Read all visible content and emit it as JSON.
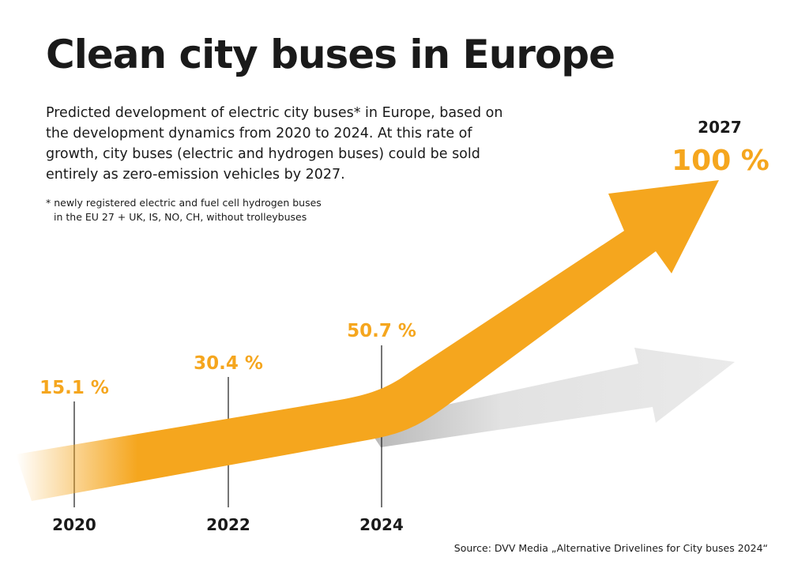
{
  "title": "Clean city buses in Europe",
  "subtitle": "Predicted development of electric city buses* in Europe, based on the development dynamics from 2020 to 2024. At this rate of growth, city buses (electric and hydrogen buses) could be sold entirely as zero-emission vehicles by 2027.",
  "footnote": {
    "line1": "* newly registered electric and fuel cell hydrogen buses",
    "line2": "in the EU 27 + UK, IS, NO, CH, without trolleybuses"
  },
  "source": "Source: DVV Media „Alternative Drivelines for City buses 2024“",
  "colors": {
    "accent": "#f5a61e",
    "ghost_arrow": "#e4e4e4",
    "text": "#1a1a1a"
  },
  "chart_data": {
    "type": "line",
    "title": "Clean city buses in Europe",
    "x": [
      "2020",
      "2022",
      "2024",
      "2027"
    ],
    "values": [
      15.1,
      30.4,
      50.7,
      100
    ],
    "labels": [
      "15.1 %",
      "30.4 %",
      "50.7 %",
      "100 %"
    ],
    "xlabel": "",
    "ylabel": "",
    "grid": false,
    "legend": "none"
  }
}
